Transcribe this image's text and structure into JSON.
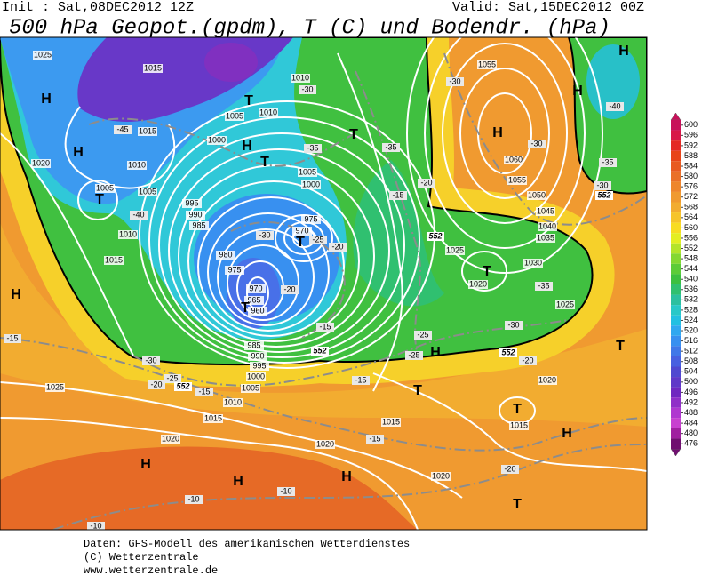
{
  "header": {
    "init": "Init : Sat,08DEC2012 12Z",
    "valid": "Valid: Sat,15DEC2012 00Z",
    "title": "500 hPa Geopot.(gpdm), T (C) und Bodendr. (hPa)"
  },
  "colorbar": {
    "ticks": [
      600,
      596,
      592,
      588,
      584,
      580,
      576,
      572,
      568,
      564,
      560,
      556,
      552,
      548,
      544,
      540,
      536,
      532,
      528,
      524,
      520,
      516,
      512,
      508,
      504,
      500,
      496,
      492,
      488,
      484,
      480,
      476
    ],
    "colors": [
      "#c8105a",
      "#d81848",
      "#e42a24",
      "#e84418",
      "#e85a20",
      "#ea7028",
      "#ee862c",
      "#f09a30",
      "#f2ac30",
      "#f6c42a",
      "#f8dc22",
      "#e4ee22",
      "#b4e42a",
      "#84d832",
      "#5ccc38",
      "#3cc040",
      "#30c070",
      "#2cc0a0",
      "#28c8c8",
      "#22c0e2",
      "#30a8f0",
      "#3890f0",
      "#4078e8",
      "#4860e0",
      "#5048d0",
      "#6038c8",
      "#7028c0",
      "#9030c8",
      "#b038d0",
      "#c840d0",
      "#a020a0",
      "#701070"
    ]
  },
  "map": {
    "isobar_labels": [
      "1025",
      "1015",
      "1010",
      "1005",
      "1010",
      "1015",
      "1000",
      "1010",
      "1020",
      "1005",
      "1005",
      "995",
      "990",
      "985",
      "1010",
      "1015",
      "980",
      "975",
      "1005",
      "1000",
      "975",
      "970",
      "970",
      "965",
      "960",
      "985",
      "990",
      "995",
      "1000",
      "1005",
      "1010",
      "1015",
      "1020",
      "1025",
      "1020",
      "1015",
      "1020",
      "1025",
      "1030",
      "1035",
      "1040",
      "1045",
      "1050",
      "1055",
      "1060",
      "1055",
      "1020",
      "1025",
      "1020",
      "1015"
    ],
    "temperature_labels": [
      "-45",
      "-40",
      "-30",
      "-35",
      "-30",
      "-25",
      "-20",
      "-20",
      "-15",
      "-15",
      "-30",
      "-25",
      "-20",
      "-15",
      "-15",
      "-15",
      "-10",
      "-10",
      "-10",
      "-15",
      "-20",
      "-35",
      "-30",
      "-30",
      "-35",
      "-40",
      "-30",
      "-35",
      "-30",
      "-25",
      "-25",
      "-20",
      "-20"
    ],
    "height_labels": [
      "552",
      "552",
      "552",
      "552",
      "552"
    ],
    "pressure_centers": [
      "H",
      "H",
      "T",
      "H",
      "T",
      "T",
      "T",
      "T",
      "T",
      "H",
      "H",
      "H",
      "H",
      "T",
      "T",
      "T",
      "T",
      "H",
      "H",
      "H",
      "H",
      "T",
      "H"
    ]
  },
  "footer": {
    "source": "Daten: GFS-Modell des amerikanischen Wetterdienstes",
    "copyright": "(C) Wetterzentrale",
    "url": "www.wetterzentrale.de"
  }
}
